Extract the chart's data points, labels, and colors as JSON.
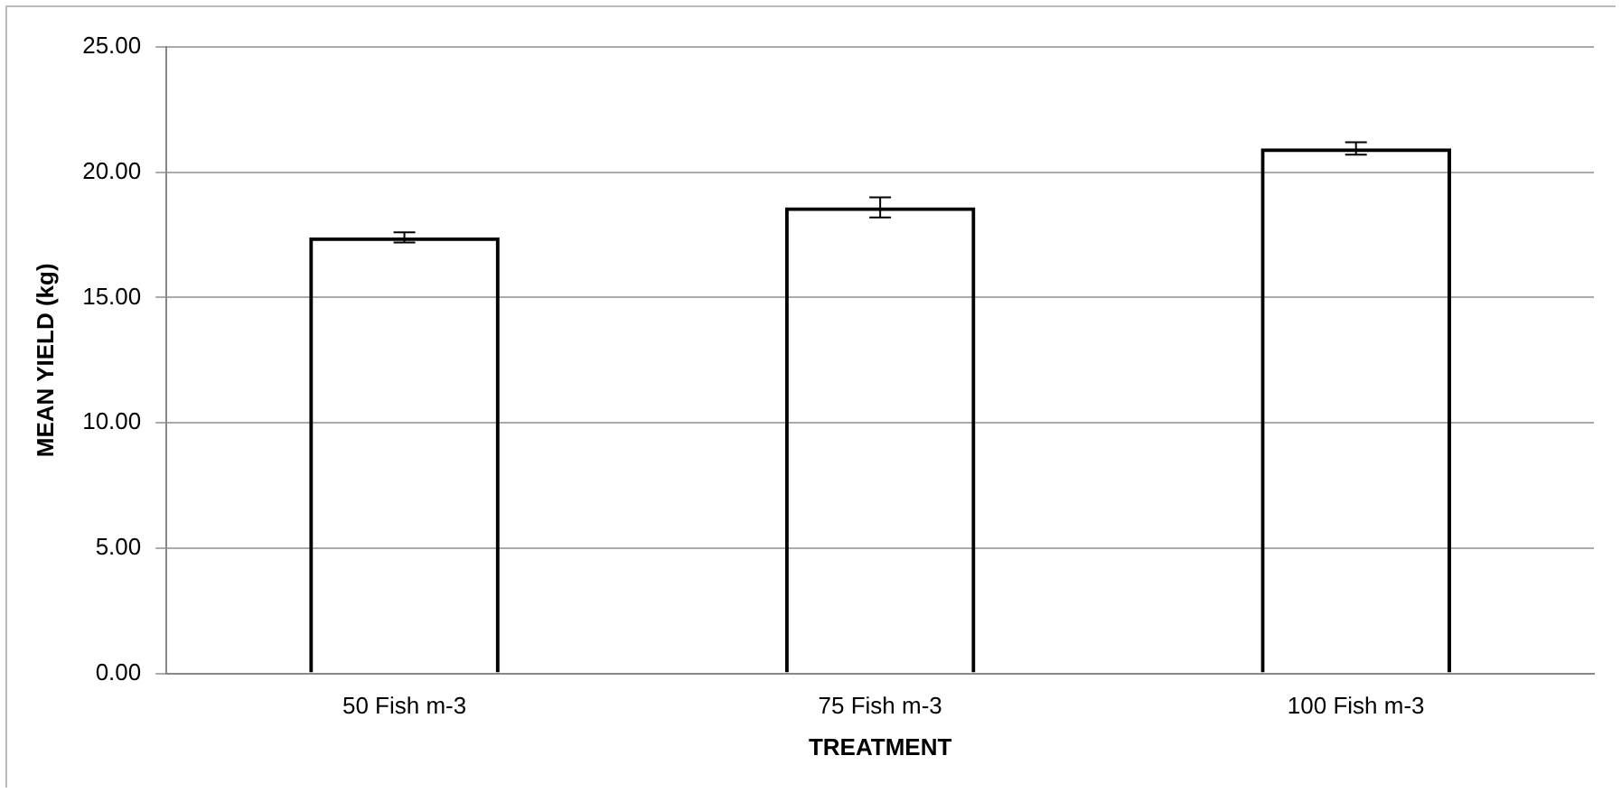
{
  "chart_data": {
    "type": "bar",
    "xlabel": "TREATMENT",
    "ylabel": "MEAN YIELD (kg)",
    "categories": [
      "50 Fish m-3",
      "75 Fish m-3",
      "100 Fish m-3"
    ],
    "values": [
      17.4,
      18.6,
      20.95
    ],
    "errors": [
      0.2,
      0.4,
      0.25
    ],
    "color": "#000000",
    "ylim": [
      0,
      25
    ],
    "yticks": [
      {
        "value": 0,
        "label": "0.00"
      },
      {
        "value": 5,
        "label": "5.00"
      },
      {
        "value": 10,
        "label": "10.00"
      },
      {
        "value": 15,
        "label": "15.00"
      },
      {
        "value": 20,
        "label": "20.00"
      },
      {
        "value": 25,
        "label": "25.00"
      }
    ],
    "grid": "y",
    "legend": false
  }
}
